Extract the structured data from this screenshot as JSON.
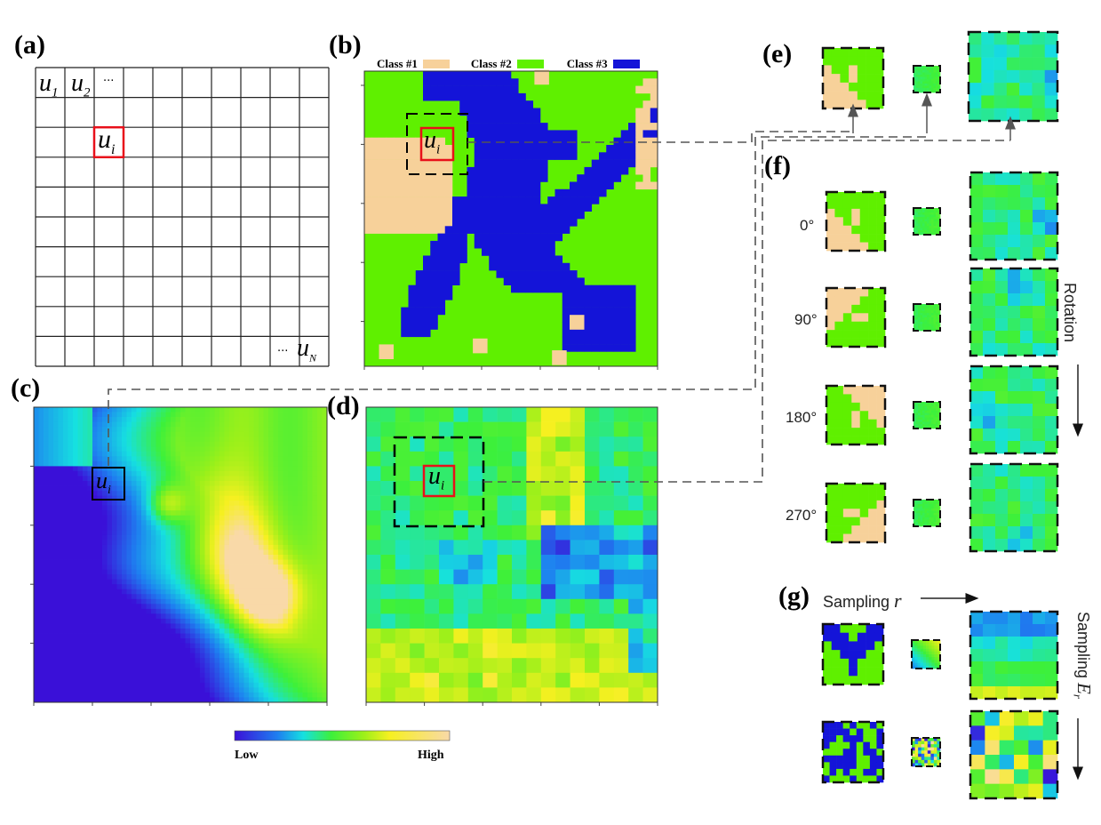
{
  "panels": {
    "a": {
      "label": "(a)",
      "u1": "u",
      "u1_sub": "1",
      "u2": "u",
      "u2_sub": "2",
      "ellipsis_top": "···",
      "ui": "u",
      "ui_sub": "i",
      "ellipsis_bottom": "···",
      "un": "u",
      "un_sub": "N"
    },
    "b": {
      "label": "(b)",
      "ui": "u",
      "ui_sub": "i",
      "legend": [
        {
          "name": "Class #1",
          "color": "#f7d19a"
        },
        {
          "name": "Class #2",
          "color": "#5ff000"
        },
        {
          "name": "Class #3",
          "color": "#1414d8"
        }
      ]
    },
    "c": {
      "label": "(c)",
      "ui": "u",
      "ui_sub": "i"
    },
    "d": {
      "label": "(d)",
      "ui": "u",
      "ui_sub": "i"
    },
    "e": {
      "label": "(e)"
    },
    "f": {
      "label": "(f)",
      "rotations": [
        "0°",
        "90°",
        "180°",
        "270°"
      ],
      "side_label": "Rotation"
    },
    "g": {
      "label": "(g)",
      "sampling_r": "Sampling ",
      "sampling_r_var": "r",
      "sampling_e": "Sampling ",
      "sampling_e_var": "E",
      "sampling_e_sub": "r"
    }
  },
  "colorbar": {
    "low": "Low",
    "high": "High",
    "colors": [
      "#3a10d8",
      "#1e7ff0",
      "#16e0e0",
      "#3df03a",
      "#9cf01a",
      "#f6f020",
      "#f9d9a8"
    ]
  }
}
